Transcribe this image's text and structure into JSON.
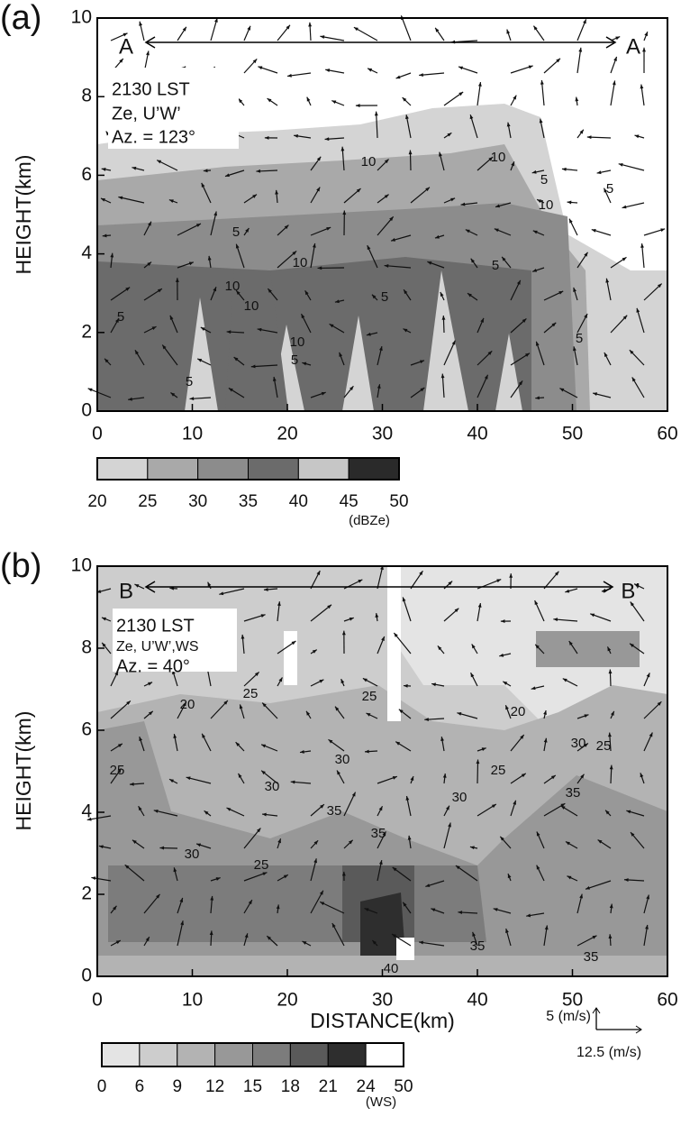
{
  "chart_data": [
    {
      "type": "contour",
      "panel_label": "(a)",
      "section_labels": [
        "A",
        "A"
      ],
      "annotation": [
        "2130 LST",
        "Ze, U’W’",
        "Az. = 123°"
      ],
      "ylabel": "HEIGHT(km)",
      "xlim": [
        0,
        60
      ],
      "xticks": [
        0,
        10,
        20,
        30,
        40,
        50,
        60
      ],
      "ylim": [
        0,
        10
      ],
      "yticks": [
        0,
        2,
        4,
        6,
        8,
        10
      ],
      "contour_labels": [
        5,
        5,
        10,
        10,
        10,
        5,
        10,
        5,
        10,
        10,
        5,
        5,
        10,
        5,
        5,
        5
      ],
      "colorbar": {
        "levels": [
          20,
          25,
          30,
          35,
          40,
          45,
          50
        ],
        "colors": [
          "#d4d4d4",
          "#a9a9a9",
          "#8c8c8c",
          "#6b6b6b",
          "#c6c6c6",
          "#2a2a2a"
        ],
        "unit": "(dBZe)"
      }
    },
    {
      "type": "contour",
      "panel_label": "(b)",
      "section_labels": [
        "B",
        "B’"
      ],
      "annotation": [
        "2130 LST",
        "Ze, U’W’,WS",
        "Az. = 40°"
      ],
      "ylabel": "HEIGHT(km)",
      "xlabel": "DISTANCE(km)",
      "xlim": [
        0,
        60
      ],
      "xticks": [
        0,
        10,
        20,
        30,
        40,
        50,
        60
      ],
      "ylim": [
        0,
        10
      ],
      "yticks": [
        0,
        2,
        4,
        6,
        8,
        10
      ],
      "contour_labels": [
        20,
        25,
        25,
        30,
        30,
        25,
        30,
        25,
        35,
        35,
        30,
        25,
        20,
        30,
        35,
        25,
        35,
        35,
        40
      ],
      "reference_vector": {
        "vertical": "5 (m/s)",
        "horizontal": "12.5 (m/s)"
      },
      "colorbar": {
        "levels": [
          0,
          6,
          9,
          12,
          15,
          18,
          21,
          24,
          50
        ],
        "colors": [
          "#e4e4e4",
          "#cdcdcd",
          "#b3b3b3",
          "#989898",
          "#7c7c7c",
          "#5a5a5a",
          "#2e2e2e",
          "#ffffff"
        ],
        "unit": "(WS)"
      }
    }
  ]
}
